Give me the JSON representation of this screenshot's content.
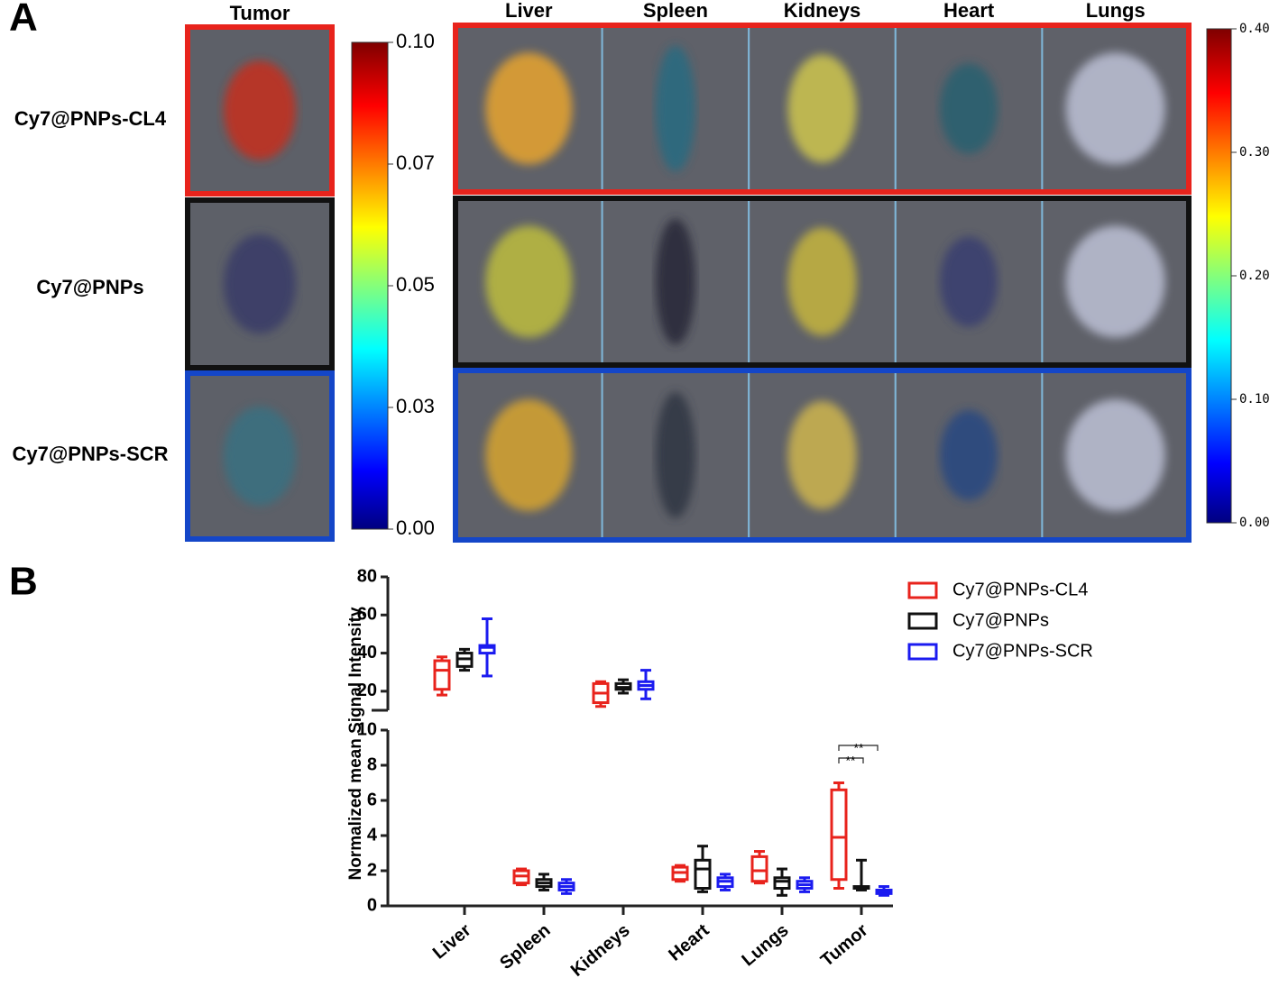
{
  "panel_labels": [
    "A",
    "B"
  ],
  "panel_a": {
    "tumor_header": "Tumor",
    "organ_headers": [
      "Liver",
      "Spleen",
      "Kidneys",
      "Heart",
      "Lungs"
    ],
    "row_labels": [
      "Cy7@PNPs-CL4",
      "Cy7@PNPs",
      "Cy7@PNPs-SCR"
    ],
    "row_colors": [
      "#e8231c",
      "#111111",
      "#1446c8"
    ],
    "colorbar_left": {
      "lim": [
        0,
        0.1
      ],
      "ticks": [
        {
          "value": 0.1,
          "label": "0.10"
        },
        {
          "value": 0.075,
          "label": "0.07"
        },
        {
          "value": 0.05,
          "label": "0.05"
        },
        {
          "value": 0.025,
          "label": "0.03"
        },
        {
          "value": 0,
          "label": "0.00"
        }
      ]
    },
    "colorbar_right": {
      "lim": [
        0,
        0.4
      ],
      "ticks": [
        {
          "value": 0.4,
          "label": "0.40"
        },
        {
          "value": 0.3,
          "label": "0.30"
        },
        {
          "value": 0.2,
          "label": "0.20"
        },
        {
          "value": 0.1,
          "label": "0.10"
        },
        {
          "value": 0,
          "label": "0.00"
        }
      ]
    }
  },
  "chart_data": {
    "type": "box",
    "y_label": "Normalized mean Signal Intensity",
    "categories": [
      "Liver",
      "Spleen",
      "Kidneys",
      "Heart",
      "Lungs",
      "Tumor"
    ],
    "y_segments": [
      {
        "ylim": [
          0,
          10
        ],
        "yticks": [
          0,
          2,
          4,
          6,
          8,
          10
        ]
      },
      {
        "ylim": [
          10,
          80
        ],
        "yticks": [
          20,
          40,
          60,
          80
        ]
      }
    ],
    "series": [
      {
        "name": "Cy7@PNPs-CL4",
        "color": "#e8231c",
        "values": [
          [
            18,
            21,
            31,
            36,
            38
          ],
          [
            1.2,
            1.3,
            1.7,
            2.0,
            2.1
          ],
          [
            12,
            14,
            19,
            24,
            25
          ],
          [
            1.4,
            1.5,
            1.9,
            2.2,
            2.3
          ],
          [
            1.3,
            1.4,
            2.0,
            2.8,
            3.1
          ],
          [
            1.0,
            1.5,
            3.9,
            6.6,
            7.0
          ]
        ]
      },
      {
        "name": "Cy7@PNPs",
        "color": "#111111",
        "values": [
          [
            31,
            33,
            37,
            40,
            42
          ],
          [
            0.9,
            1.1,
            1.3,
            1.5,
            1.8
          ],
          [
            19,
            21,
            22,
            24,
            26
          ],
          [
            0.8,
            1.0,
            2.1,
            2.6,
            3.4
          ],
          [
            0.6,
            1.0,
            1.4,
            1.6,
            2.1
          ],
          [
            0.9,
            1.0,
            1.0,
            1.1,
            2.6
          ]
        ]
      },
      {
        "name": "Cy7@PNPs-SCR",
        "color": "#1b1bf0",
        "values": [
          [
            28,
            40,
            43,
            44,
            58
          ],
          [
            0.7,
            0.9,
            1.1,
            1.3,
            1.5
          ],
          [
            16,
            21,
            23,
            25,
            31
          ],
          [
            0.9,
            1.1,
            1.4,
            1.6,
            1.8
          ],
          [
            0.8,
            1.0,
            1.2,
            1.4,
            1.6
          ],
          [
            0.6,
            0.7,
            0.8,
            0.9,
            1.1
          ]
        ]
      }
    ],
    "annotations": [
      "**",
      "**"
    ]
  }
}
